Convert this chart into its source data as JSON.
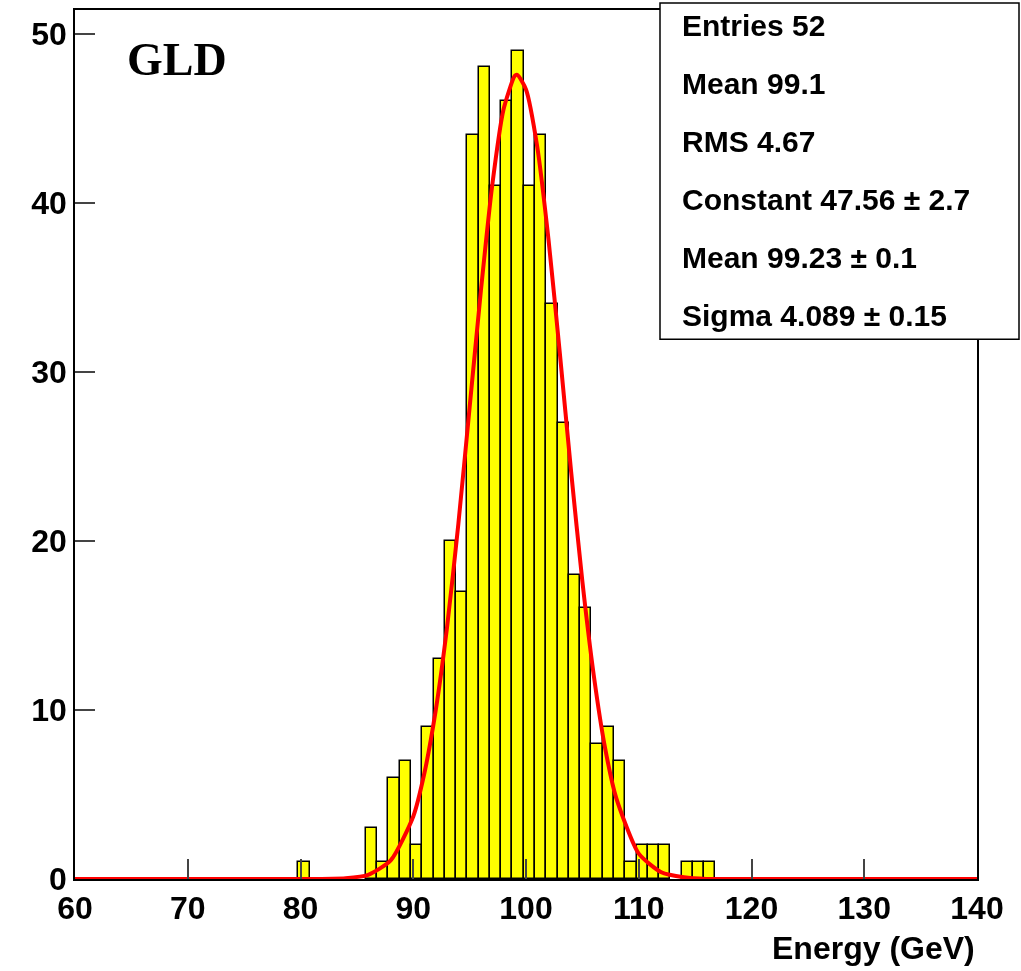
{
  "chart_data": {
    "type": "histogram",
    "title": "GLD",
    "xlabel": "Energy (GeV)",
    "series": [
      {
        "color": "#ffff00",
        "bins": [
          79.8,
          80.8,
          81.8,
          82.8,
          83.8,
          84.8,
          85.8,
          86.8,
          87.8,
          88.8,
          89.8,
          90.8,
          91.8,
          92.8,
          93.8,
          94.8,
          95.8,
          96.8,
          97.8,
          98.8,
          99.8,
          100.8,
          101.8,
          102.8,
          103.8,
          104.8,
          105.8,
          106.8,
          107.8,
          108.8,
          109.8,
          110.8,
          111.8,
          112.8,
          113.8,
          114.8,
          115.8,
          116.8
        ],
        "values": [
          1,
          0,
          0,
          0,
          0,
          0,
          3,
          1,
          6,
          7,
          2,
          9,
          13,
          20,
          17,
          44,
          48,
          41,
          46,
          49,
          41,
          44,
          34,
          27,
          18,
          16,
          8,
          9,
          7,
          1,
          2,
          2,
          2,
          0,
          1,
          1,
          1
        ]
      },
      {
        "type": "line",
        "color": "#ff0000",
        "x": [
          60,
          80,
          84,
          86,
          88,
          90,
          91,
          92,
          93,
          94,
          95,
          96,
          97,
          98,
          99,
          99.23,
          100,
          101,
          102,
          103,
          104,
          105,
          106,
          107,
          108,
          110,
          112,
          114,
          116,
          120,
          140
        ],
        "values": [
          0,
          0,
          0.05,
          0.25,
          1.1,
          3.7,
          6.3,
          10,
          14.9,
          21,
          27.9,
          34.8,
          41,
          45.5,
          47.5,
          47.56,
          46.7,
          43.3,
          37.8,
          31.1,
          24.1,
          17.6,
          12.1,
          7.8,
          4.8,
          1.5,
          0.4,
          0.1,
          0,
          0,
          0
        ]
      }
    ],
    "xlim": [
      60,
      140
    ],
    "xticks": [
      60,
      70,
      80,
      90,
      100,
      110,
      120,
      130,
      140
    ],
    "ylim": [
      0,
      51.4
    ],
    "yticks": [
      0,
      10,
      20,
      30,
      40,
      50
    ],
    "annotations": [
      "Entries 52",
      "Mean 99.1",
      "RMS 4.67",
      "Constant 47.56 ± 2.7",
      "Mean 99.23 ± 0.1",
      "Sigma 4.089 ± 0.15"
    ]
  }
}
